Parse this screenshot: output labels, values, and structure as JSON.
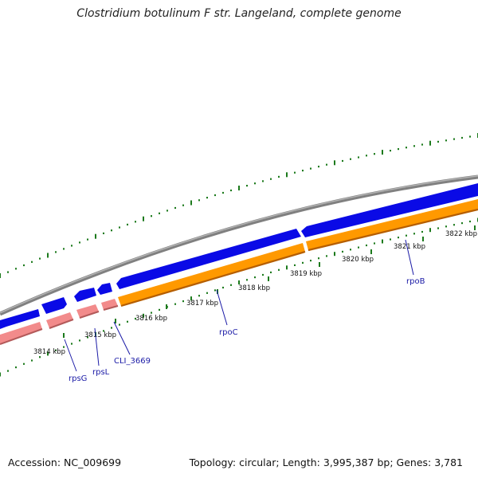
{
  "title": "Clostridium botulinum F str. Langeland, complete genome",
  "accession": "Accession: NC_009699",
  "summary": "Topology: circular; Length: 3,995,387 bp; Genes: 3,781",
  "tick_labels": [
    "3814 kbp",
    "3815 kbp",
    "3816 kbp",
    "3817 kbp",
    "3818 kbp",
    "3819 kbp",
    "3820 kbp",
    "3821 kbp",
    "3822 kbp"
  ],
  "gene_labels": [
    "rpsG",
    "rpsL",
    "CLI_3669",
    "rpoC",
    "rpoB"
  ],
  "colors": {
    "backbone": "#808080",
    "cds_forward": "#0a0ae6",
    "cds_reverse": "#ff9900",
    "rna": "#f28b8b",
    "gc_tick": "#1c7a1c",
    "label": "#1a1aa6"
  }
}
